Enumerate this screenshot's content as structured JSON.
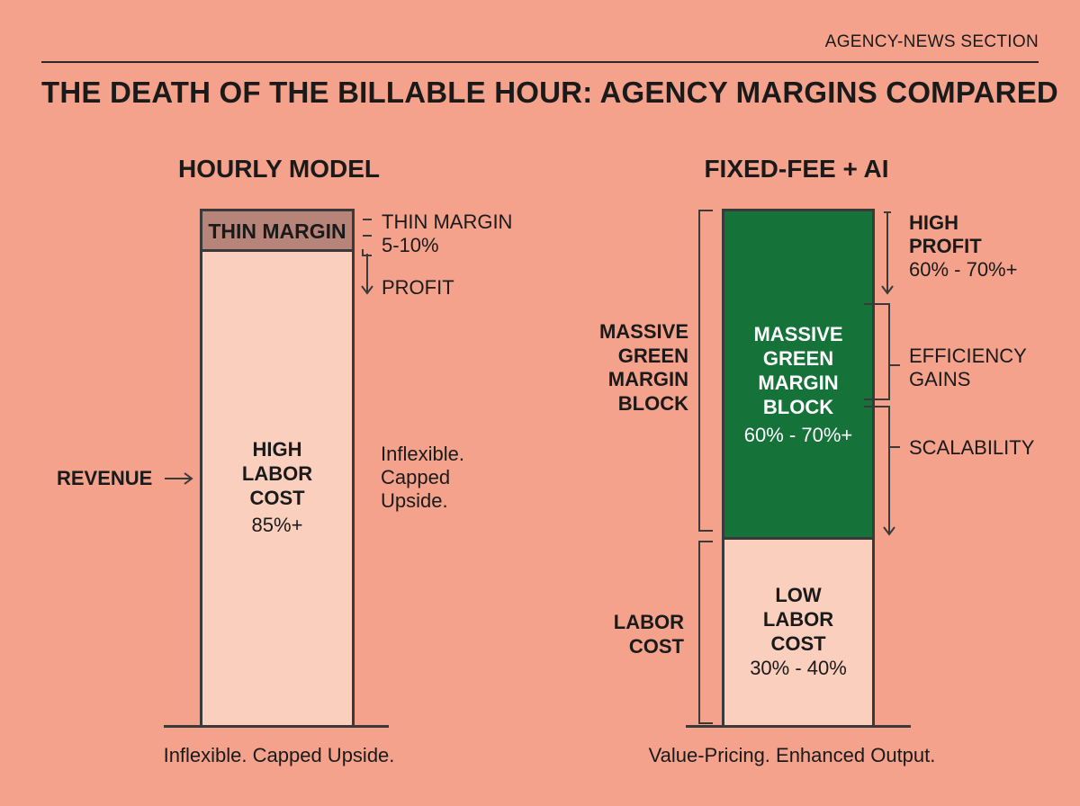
{
  "header": {
    "section_tag": "AGENCY-NEWS SECTION",
    "title": "THE DEATH OF THE BILLABLE HOUR: AGENCY MARGINS COMPARED"
  },
  "hourly": {
    "heading": "HOURLY MODEL",
    "margin_block_label": "THIN MARGIN",
    "margin_annot": [
      "THIN MARGIN",
      "5-10%"
    ],
    "profit_label": "PROFIT",
    "labor_block": [
      "HIGH",
      "LABOR",
      "COST"
    ],
    "labor_pct": "85%+",
    "revenue_label": "REVENUE",
    "side_note": [
      "Inflexible.",
      "Capped",
      "Upside."
    ],
    "caption": "Inflexible. Capped Upside.",
    "colors": {
      "margin": "#b68478",
      "labor": "#fbcfbe"
    }
  },
  "fixed": {
    "heading": "FIXED-FEE + AI",
    "margin_block": [
      "MASSIVE",
      "GREEN",
      "MARGIN",
      "BLOCK"
    ],
    "margin_pct": "60% - 70%+",
    "left_margin_label": [
      "MASSIVE",
      "GREEN",
      "MARGIN",
      "BLOCK"
    ],
    "high_profit": [
      "HIGH",
      "PROFIT"
    ],
    "high_profit_pct": "60% - 70%+",
    "efficiency": [
      "EFFICIENCY",
      "GAINS"
    ],
    "scalability": "SCALABILITY",
    "labor_block": [
      "LOW",
      "LABOR",
      "COST"
    ],
    "labor_pct": "30% - 40%",
    "left_labor_label": [
      "LABOR",
      "COST"
    ],
    "caption": "Value-Pricing. Enhanced Output.",
    "colors": {
      "margin": "#15733a",
      "labor": "#fbcfbe"
    }
  }
}
